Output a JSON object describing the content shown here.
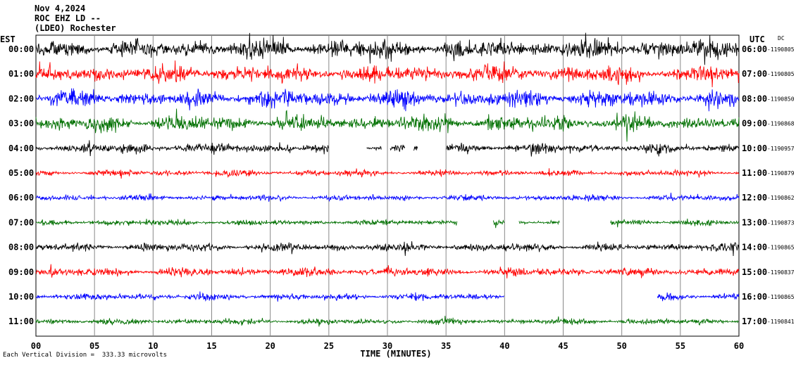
{
  "header": {
    "date": "Nov 4,2024",
    "station": "ROC EHZ LD --",
    "location": "(LDEO) Rochester"
  },
  "footer": {
    "scale_note": "Each Vertical Division =  333.33 microvolts"
  },
  "chart_data": {
    "type": "line",
    "title": "Nov 4,2024",
    "left_axis_label": "EST",
    "right_axis_label": "UTC",
    "dc_label": "DC",
    "xlabel": "TIME (MINUTES)",
    "xlim": [
      0,
      60
    ],
    "x_ticks": [
      "00",
      "05",
      "10",
      "15",
      "20",
      "25",
      "30",
      "35",
      "40",
      "45",
      "50",
      "55",
      "60"
    ],
    "x_tick_values": [
      0,
      5,
      10,
      15,
      20,
      25,
      30,
      35,
      40,
      45,
      50,
      55,
      60
    ],
    "grid": true,
    "color_cycle": [
      "#000000",
      "#ff0000",
      "#0000ff",
      "#007000"
    ],
    "rows": [
      {
        "est": "00:00",
        "utc": "06:00",
        "dc": "-1190805",
        "color": "#000000",
        "amplitude": 1.0,
        "gaps": []
      },
      {
        "est": "01:00",
        "utc": "07:00",
        "dc": "-1190805",
        "color": "#ff0000",
        "amplitude": 0.85,
        "gaps": []
      },
      {
        "est": "02:00",
        "utc": "08:00",
        "dc": "-1190850",
        "color": "#0000ff",
        "amplitude": 0.85,
        "gaps": []
      },
      {
        "est": "03:00",
        "utc": "09:00",
        "dc": "-1190868",
        "color": "#007000",
        "amplitude": 0.8,
        "gaps": []
      },
      {
        "est": "04:00",
        "utc": "10:00",
        "dc": "-1190957",
        "color": "#000000",
        "amplitude": 0.5,
        "gaps": [
          [
            25,
            28.2
          ],
          [
            29.5,
            30.2
          ],
          [
            31.5,
            32.2
          ],
          [
            32.6,
            35
          ]
        ]
      },
      {
        "est": "05:00",
        "utc": "11:00",
        "dc": "-1190879",
        "color": "#ff0000",
        "amplitude": 0.3,
        "gaps": []
      },
      {
        "est": "06:00",
        "utc": "12:00",
        "dc": "-1190862",
        "color": "#0000ff",
        "amplitude": 0.3,
        "gaps": []
      },
      {
        "est": "07:00",
        "utc": "13:00",
        "dc": "-1190873",
        "color": "#007000",
        "amplitude": 0.3,
        "gaps": [
          [
            36,
            39
          ],
          [
            40,
            41.2
          ],
          [
            44.7,
            49
          ]
        ]
      },
      {
        "est": "08:00",
        "utc": "14:00",
        "dc": "-1190865",
        "color": "#000000",
        "amplitude": 0.4,
        "gaps": []
      },
      {
        "est": "09:00",
        "utc": "15:00",
        "dc": "-1190837",
        "color": "#ff0000",
        "amplitude": 0.45,
        "gaps": []
      },
      {
        "est": "10:00",
        "utc": "16:00",
        "dc": "-1190865",
        "color": "#0000ff",
        "amplitude": 0.35,
        "gaps": [
          [
            40,
            53
          ]
        ]
      },
      {
        "est": "11:00",
        "utc": "17:00",
        "dc": "-1190841",
        "color": "#007000",
        "amplitude": 0.3,
        "gaps": []
      }
    ],
    "annotations": [
      "TIME (MINUTES)"
    ]
  }
}
